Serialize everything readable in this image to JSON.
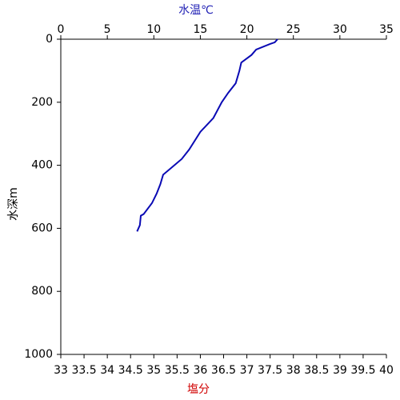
{
  "chart_data": {
    "type": "line",
    "top_axis_label": "水温℃",
    "top_axis_label_color": "#1f1fb4",
    "bottom_axis_label": "塩分",
    "bottom_axis_label_color": "#d00000",
    "y_axis_label": "水深m",
    "xlim": [
      0,
      35
    ],
    "xticks": [
      0,
      5,
      10,
      15,
      20,
      25,
      30,
      35
    ],
    "x2lim": [
      33,
      40
    ],
    "x2ticks": [
      33,
      33.5,
      34,
      34.5,
      35,
      35.5,
      36,
      36.5,
      37,
      37.5,
      38,
      38.5,
      39,
      39.5,
      40
    ],
    "ylim": [
      0,
      1000
    ],
    "y_inverted": true,
    "yticks": [
      0,
      200,
      400,
      600,
      800,
      1000
    ],
    "series": [
      {
        "color": "#0a0ab4",
        "x": [
          23.3,
          23.0,
          22.5,
          21.0,
          20.5,
          19.4,
          19.2,
          18.8,
          18.0,
          17.3,
          16.4,
          15.0,
          13.8,
          13.0,
          12.2,
          11.0,
          10.7,
          10.3,
          9.8,
          8.9,
          8.6,
          8.5,
          8.2
        ],
        "y": [
          0,
          10,
          15,
          33,
          50,
          74,
          100,
          140,
          170,
          200,
          250,
          294,
          350,
          380,
          400,
          430,
          460,
          490,
          520,
          555,
          560,
          590,
          610
        ]
      }
    ]
  }
}
